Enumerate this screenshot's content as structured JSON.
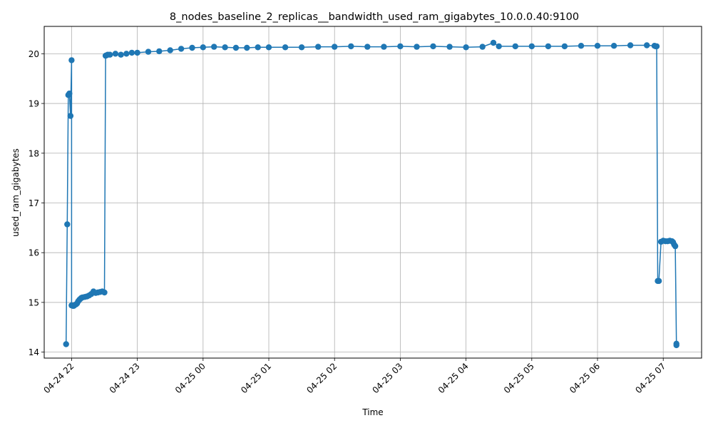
{
  "chart_data": {
    "type": "line",
    "title": "8_nodes_baseline_2_replicas__bandwidth_used_ram_gigabytes_10.0.0.40:9100",
    "xlabel": "Time",
    "ylabel": "used_ram_gigabytes",
    "x_ticks": [
      "2024-04-24 22:00",
      "2024-04-24 23:00",
      "2024-04-25 00:00",
      "2024-04-25 01:00",
      "2024-04-25 02:00",
      "2024-04-25 03:00",
      "2024-04-25 04:00",
      "2024-04-25 05:00",
      "2024-04-25 06:00",
      "2024-04-25 07:00"
    ],
    "x_tick_labels": [
      "04-24 22",
      "04-24 23",
      "04-25 00",
      "04-25 01",
      "04-25 02",
      "04-25 03",
      "04-25 04",
      "04-25 05",
      "04-25 06",
      "04-25 07"
    ],
    "xlim": [
      "2024-04-24 21:35",
      "2024-04-25 07:35"
    ],
    "y_ticks": [
      14,
      15,
      16,
      17,
      18,
      19,
      20
    ],
    "ylim": [
      13.88,
      20.55
    ],
    "grid": true,
    "color": "#1f77b4",
    "series": [
      {
        "x": [
          "2024-04-24 21:55",
          "2024-04-24 21:56",
          "2024-04-24 21:57",
          "2024-04-24 21:58",
          "2024-04-24 21:59",
          "2024-04-24 22:00",
          "2024-04-24 22:00",
          "2024-04-24 22:01",
          "2024-04-24 22:02",
          "2024-04-24 22:03",
          "2024-04-24 22:04",
          "2024-04-24 22:05",
          "2024-04-24 22:06",
          "2024-04-24 22:07",
          "2024-04-24 22:08",
          "2024-04-24 22:09",
          "2024-04-24 22:10",
          "2024-04-24 22:12",
          "2024-04-24 22:14",
          "2024-04-24 22:16",
          "2024-04-24 22:18",
          "2024-04-24 22:20",
          "2024-04-24 22:22",
          "2024-04-24 22:24",
          "2024-04-24 22:26",
          "2024-04-24 22:28",
          "2024-04-24 22:30",
          "2024-04-24 22:31",
          "2024-04-24 22:32",
          "2024-04-24 22:33",
          "2024-04-24 22:35",
          "2024-04-24 22:40",
          "2024-04-24 22:45",
          "2024-04-24 22:50",
          "2024-04-24 22:55",
          "2024-04-24 23:00",
          "2024-04-24 23:10",
          "2024-04-24 23:20",
          "2024-04-24 23:30",
          "2024-04-24 23:40",
          "2024-04-24 23:50",
          "2024-04-25 00:00",
          "2024-04-25 00:10",
          "2024-04-25 00:20",
          "2024-04-25 00:30",
          "2024-04-25 00:40",
          "2024-04-25 00:50",
          "2024-04-25 01:00",
          "2024-04-25 01:15",
          "2024-04-25 01:30",
          "2024-04-25 01:45",
          "2024-04-25 02:00",
          "2024-04-25 02:15",
          "2024-04-25 02:30",
          "2024-04-25 02:45",
          "2024-04-25 03:00",
          "2024-04-25 03:15",
          "2024-04-25 03:30",
          "2024-04-25 03:45",
          "2024-04-25 04:00",
          "2024-04-25 04:15",
          "2024-04-25 04:25",
          "2024-04-25 04:30",
          "2024-04-25 04:45",
          "2024-04-25 05:00",
          "2024-04-25 05:15",
          "2024-04-25 05:30",
          "2024-04-25 05:45",
          "2024-04-25 06:00",
          "2024-04-25 06:15",
          "2024-04-25 06:30",
          "2024-04-25 06:45",
          "2024-04-25 06:52",
          "2024-04-25 06:53",
          "2024-04-25 06:54",
          "2024-04-25 06:55",
          "2024-04-25 06:56",
          "2024-04-25 06:58",
          "2024-04-25 07:00",
          "2024-04-25 07:02",
          "2024-04-25 07:04",
          "2024-04-25 07:06",
          "2024-04-25 07:08",
          "2024-04-25 07:09",
          "2024-04-25 07:10",
          "2024-04-25 07:11",
          "2024-04-25 07:12",
          "2024-04-25 07:12"
        ],
        "y": [
          14.16,
          16.57,
          19.17,
          19.2,
          18.75,
          19.87,
          14.94,
          14.93,
          14.93,
          14.95,
          14.96,
          14.98,
          15.02,
          15.05,
          15.07,
          15.09,
          15.1,
          15.11,
          15.12,
          15.14,
          15.17,
          15.22,
          15.19,
          15.2,
          15.21,
          15.22,
          15.2,
          19.96,
          19.97,
          19.98,
          19.98,
          20.0,
          19.98,
          20.0,
          20.02,
          20.02,
          20.04,
          20.05,
          20.07,
          20.1,
          20.12,
          20.13,
          20.14,
          20.13,
          20.12,
          20.12,
          20.13,
          20.13,
          20.13,
          20.13,
          20.14,
          20.14,
          20.15,
          20.14,
          20.14,
          20.15,
          20.14,
          20.15,
          20.14,
          20.13,
          20.14,
          20.22,
          20.15,
          20.15,
          20.15,
          20.15,
          20.15,
          20.16,
          20.16,
          20.16,
          20.17,
          20.17,
          20.16,
          20.15,
          20.15,
          15.43,
          15.43,
          16.22,
          16.24,
          16.23,
          16.23,
          16.24,
          16.23,
          16.21,
          16.16,
          16.13,
          14.17,
          14.14
        ]
      }
    ]
  }
}
